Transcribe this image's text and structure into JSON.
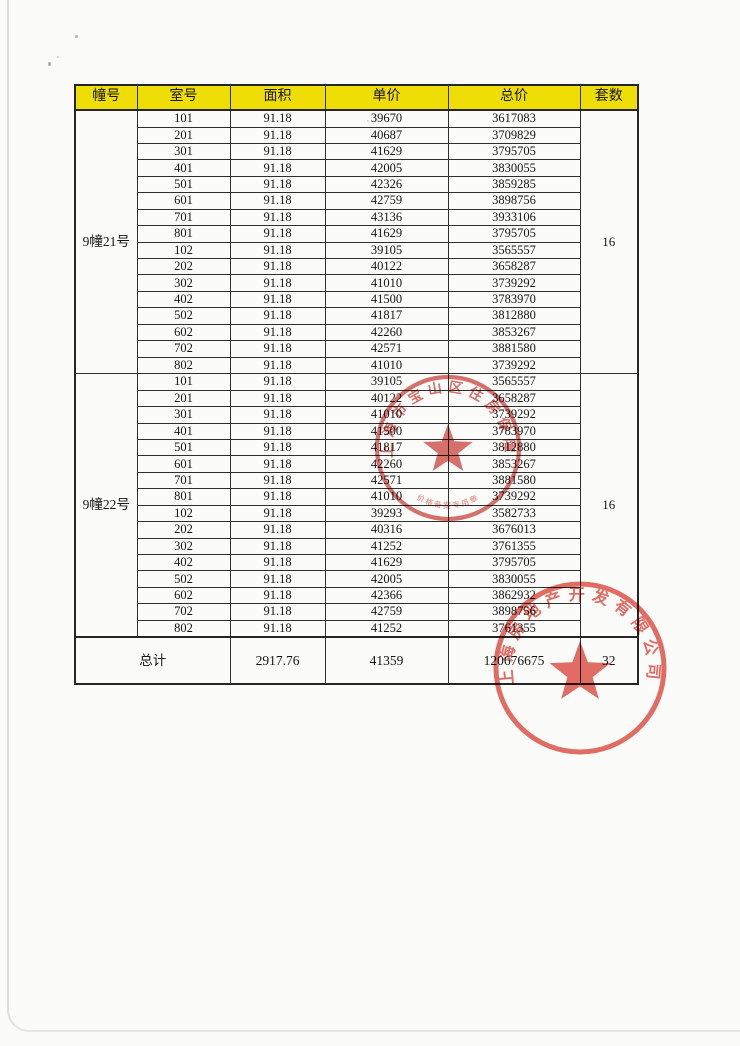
{
  "table": {
    "headers": [
      "幢号",
      "室号",
      "面积",
      "单价",
      "总价",
      "套数"
    ],
    "sections": [
      {
        "building": "9幢21号",
        "unit_count": "16",
        "rows": [
          [
            "101",
            "91.18",
            "39670",
            "3617083"
          ],
          [
            "201",
            "91.18",
            "40687",
            "3709829"
          ],
          [
            "301",
            "91.18",
            "41629",
            "3795705"
          ],
          [
            "401",
            "91.18",
            "42005",
            "3830055"
          ],
          [
            "501",
            "91.18",
            "42326",
            "3859285"
          ],
          [
            "601",
            "91.18",
            "42759",
            "3898756"
          ],
          [
            "701",
            "91.18",
            "43136",
            "3933106"
          ],
          [
            "801",
            "91.18",
            "41629",
            "3795705"
          ],
          [
            "102",
            "91.18",
            "39105",
            "3565557"
          ],
          [
            "202",
            "91.18",
            "40122",
            "3658287"
          ],
          [
            "302",
            "91.18",
            "41010",
            "3739292"
          ],
          [
            "402",
            "91.18",
            "41500",
            "3783970"
          ],
          [
            "502",
            "91.18",
            "41817",
            "3812880"
          ],
          [
            "602",
            "91.18",
            "42260",
            "3853267"
          ],
          [
            "702",
            "91.18",
            "42571",
            "3881580"
          ],
          [
            "802",
            "91.18",
            "41010",
            "3739292"
          ]
        ]
      },
      {
        "building": "9幢22号",
        "unit_count": "16",
        "rows": [
          [
            "101",
            "91.18",
            "39105",
            "3565557"
          ],
          [
            "201",
            "91.18",
            "40122",
            "3658287"
          ],
          [
            "301",
            "91.18",
            "41010",
            "3739292"
          ],
          [
            "401",
            "91.18",
            "41500",
            "3783970"
          ],
          [
            "501",
            "91.18",
            "41817",
            "3812880"
          ],
          [
            "601",
            "91.18",
            "42260",
            "3853267"
          ],
          [
            "701",
            "91.18",
            "42571",
            "3881580"
          ],
          [
            "801",
            "91.18",
            "41010",
            "3739292"
          ],
          [
            "102",
            "91.18",
            "39293",
            "3582733"
          ],
          [
            "202",
            "91.18",
            "40316",
            "3676013"
          ],
          [
            "302",
            "91.18",
            "41252",
            "3761355"
          ],
          [
            "402",
            "91.18",
            "41629",
            "3795705"
          ],
          [
            "502",
            "91.18",
            "42005",
            "3830055"
          ],
          [
            "602",
            "91.18",
            "42366",
            "3862932"
          ],
          [
            "702",
            "91.18",
            "42759",
            "3898756"
          ],
          [
            "802",
            "91.18",
            "41252",
            "3761355"
          ]
        ]
      }
    ],
    "total": {
      "label": "总计",
      "area": "2917.76",
      "unit_price": "41359",
      "total_price": "120676675",
      "count": "32"
    }
  },
  "stamps": [
    {
      "arc_text": "上海市宝山区住房保障",
      "bottom_text": "价格备案专用章",
      "color": "#cf4a42"
    },
    {
      "arc_text": "上海房地产开发有限公司",
      "color": "#e0544a"
    }
  ],
  "colors": {
    "header_bg": "#eede06",
    "border": "#2e2e2e",
    "stamp_red": "#d9483f"
  }
}
